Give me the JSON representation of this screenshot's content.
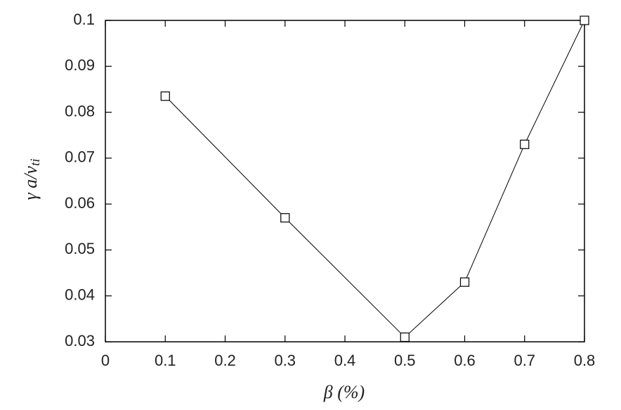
{
  "chart_data": {
    "type": "line",
    "x_label": "β  (%)",
    "y_label": "γ a/v",
    "y_label_subscript": "ti",
    "x": [
      0.1,
      0.3,
      0.5,
      0.6,
      0.7,
      0.8
    ],
    "series": [
      {
        "color": "#000000",
        "values": [
          0.0835,
          0.057,
          0.031,
          0.043,
          0.073,
          0.1
        ]
      }
    ],
    "xlim": [
      0,
      0.8
    ],
    "xticks": [
      0,
      0.1,
      0.2,
      0.3,
      0.4,
      0.5,
      0.6,
      0.7,
      0.8
    ],
    "ylim": [
      0.03,
      0.1
    ],
    "yticks": [
      0.03,
      0.04,
      0.05,
      0.06,
      0.07,
      0.08,
      0.09,
      0.1
    ],
    "grid": false,
    "marker": "open-square"
  }
}
